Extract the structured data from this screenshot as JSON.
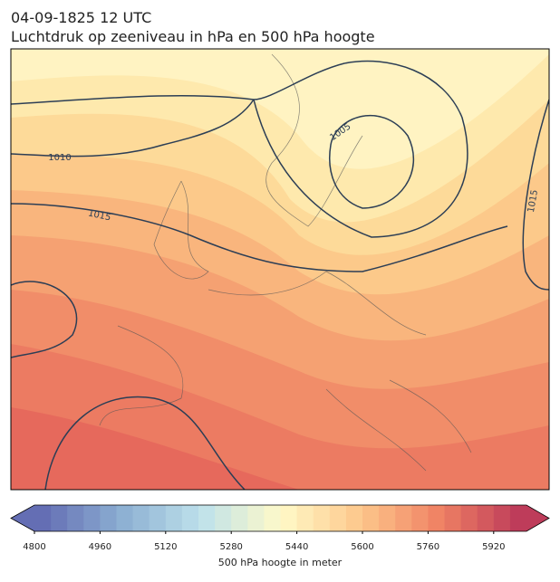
{
  "header": {
    "title": "04-09-1825 12 UTC",
    "subtitle": "Luchtdruk op zeeniveau in hPa en 500 hPa hoogte"
  },
  "contour_labels": [
    "1010",
    "1015",
    "1005",
    "1015"
  ],
  "colorbar": {
    "ticks": [
      "4800",
      "4960",
      "5120",
      "5280",
      "5440",
      "5600",
      "5760",
      "5920"
    ],
    "label": "500 hPa hoogte in meter"
  }
}
